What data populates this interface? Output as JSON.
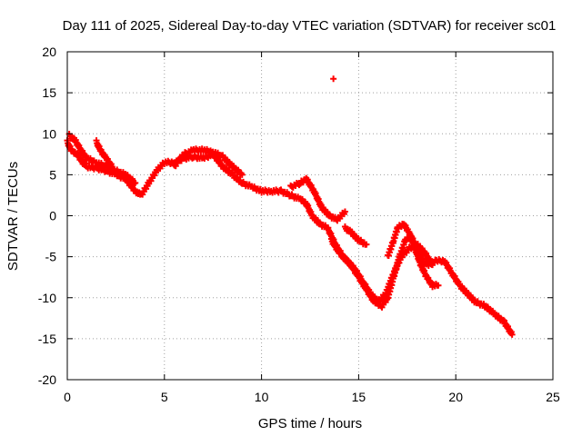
{
  "chart_data": {
    "type": "scatter",
    "title": "Day 111 of 2025, Sidereal Day-to-day VTEC variation (SDTVAR) for receiver sc01",
    "xlabel": "GPS time / hours",
    "ylabel": "SDTVAR / TECUs",
    "xlim": [
      0,
      25
    ],
    "ylim": [
      -20,
      20
    ],
    "xticks": [
      0,
      5,
      10,
      15,
      20,
      25
    ],
    "xtick_labels": [
      "0",
      "5",
      "10",
      "15",
      "20",
      "25"
    ],
    "yticks": [
      -20,
      -15,
      -10,
      -5,
      0,
      5,
      10,
      15,
      20
    ],
    "ytick_labels": [
      "-20",
      "-15",
      "-10",
      "-5",
      "0",
      "5",
      "10",
      "15",
      "20"
    ],
    "grid": true,
    "marker": "plus",
    "marker_color": "#ff0000",
    "series": [
      {
        "name": "track-main",
        "x": [
          0.0,
          0.2,
          0.5,
          0.8,
          1.0,
          1.5,
          2.0,
          2.5,
          3.0,
          3.5,
          3.8,
          4.2,
          4.6,
          5.0,
          5.5,
          6.0,
          6.5,
          7.0,
          7.5,
          8.0,
          8.5,
          9.0,
          9.5,
          10.0,
          10.5,
          11.0,
          11.5,
          12.0,
          12.3,
          12.6,
          13.0,
          13.4,
          13.8,
          14.2,
          14.6,
          15.0,
          15.4,
          15.8,
          16.2,
          16.5,
          16.8,
          17.1,
          17.4,
          17.7,
          18.0,
          18.3,
          18.6,
          19.0,
          19.4,
          19.8,
          20.2,
          20.6,
          21.0,
          21.5,
          22.0,
          22.5,
          22.9
        ],
        "y": [
          9.0,
          8.0,
          7.5,
          6.5,
          6.0,
          5.8,
          5.5,
          5.0,
          4.5,
          3.0,
          2.5,
          4.0,
          5.5,
          6.5,
          6.5,
          7.0,
          7.2,
          7.0,
          7.5,
          6.0,
          5.0,
          4.0,
          3.5,
          3.0,
          3.0,
          3.0,
          2.5,
          2.0,
          1.5,
          0.0,
          -1.0,
          -1.5,
          -3.5,
          -5.0,
          -6.0,
          -7.5,
          -9.0,
          -10.5,
          -11.0,
          -10.0,
          -7.5,
          -5.0,
          -3.0,
          -2.5,
          -4.0,
          -5.5,
          -6.0,
          -5.5,
          -5.5,
          -7.0,
          -8.5,
          -9.5,
          -10.5,
          -11.0,
          -12.0,
          -13.0,
          -14.5
        ]
      },
      {
        "name": "track-upper-left",
        "x": [
          0.1,
          0.4,
          0.7,
          1.0,
          1.5,
          2.0,
          2.5,
          3.0,
          3.5
        ],
        "y": [
          9.8,
          9.2,
          8.0,
          7.0,
          6.5,
          6.0,
          5.5,
          5.0,
          4.0
        ]
      },
      {
        "name": "track-hump-2h",
        "x": [
          1.5,
          1.7,
          2.0,
          2.3
        ],
        "y": [
          9.0,
          8.0,
          7.0,
          6.0
        ]
      },
      {
        "name": "track-afternoon",
        "x": [
          5.5,
          6.0,
          6.5,
          7.0,
          7.5,
          8.0,
          8.5,
          9.0
        ],
        "y": [
          6.0,
          7.5,
          8.0,
          8.0,
          7.8,
          7.2,
          6.0,
          5.0
        ]
      },
      {
        "name": "track-dip",
        "x": [
          11.5,
          12.0,
          12.3,
          12.7,
          13.1,
          13.5,
          13.9,
          14.3
        ],
        "y": [
          3.5,
          4.0,
          4.5,
          3.0,
          1.0,
          0.0,
          -0.5,
          0.5
        ]
      },
      {
        "name": "track-lower-right",
        "x": [
          13.6,
          14.0,
          14.4,
          14.8,
          15.2,
          15.6,
          16.0,
          16.4,
          16.8,
          17.2,
          17.6,
          18.0,
          18.4,
          18.8
        ],
        "y": [
          -3.0,
          -4.5,
          -5.5,
          -6.5,
          -8.0,
          -9.5,
          -10.5,
          -9.5,
          -7.0,
          -5.0,
          -4.0,
          -3.5,
          -4.5,
          -6.0
        ]
      },
      {
        "name": "track-loop",
        "x": [
          16.5,
          16.8,
          17.0,
          17.3,
          17.6,
          17.9,
          18.2,
          18.5,
          18.8,
          19.1
        ],
        "y": [
          -5.0,
          -3.0,
          -1.5,
          -1.0,
          -2.0,
          -4.0,
          -6.0,
          -7.5,
          -8.5,
          -8.5
        ]
      },
      {
        "name": "track-arc",
        "x": [
          14.3,
          14.6,
          15.0,
          15.4
        ],
        "y": [
          -1.5,
          -2.0,
          -3.0,
          -3.5
        ]
      },
      {
        "name": "outlier",
        "x": [
          13.7
        ],
        "y": [
          16.7
        ]
      }
    ]
  }
}
